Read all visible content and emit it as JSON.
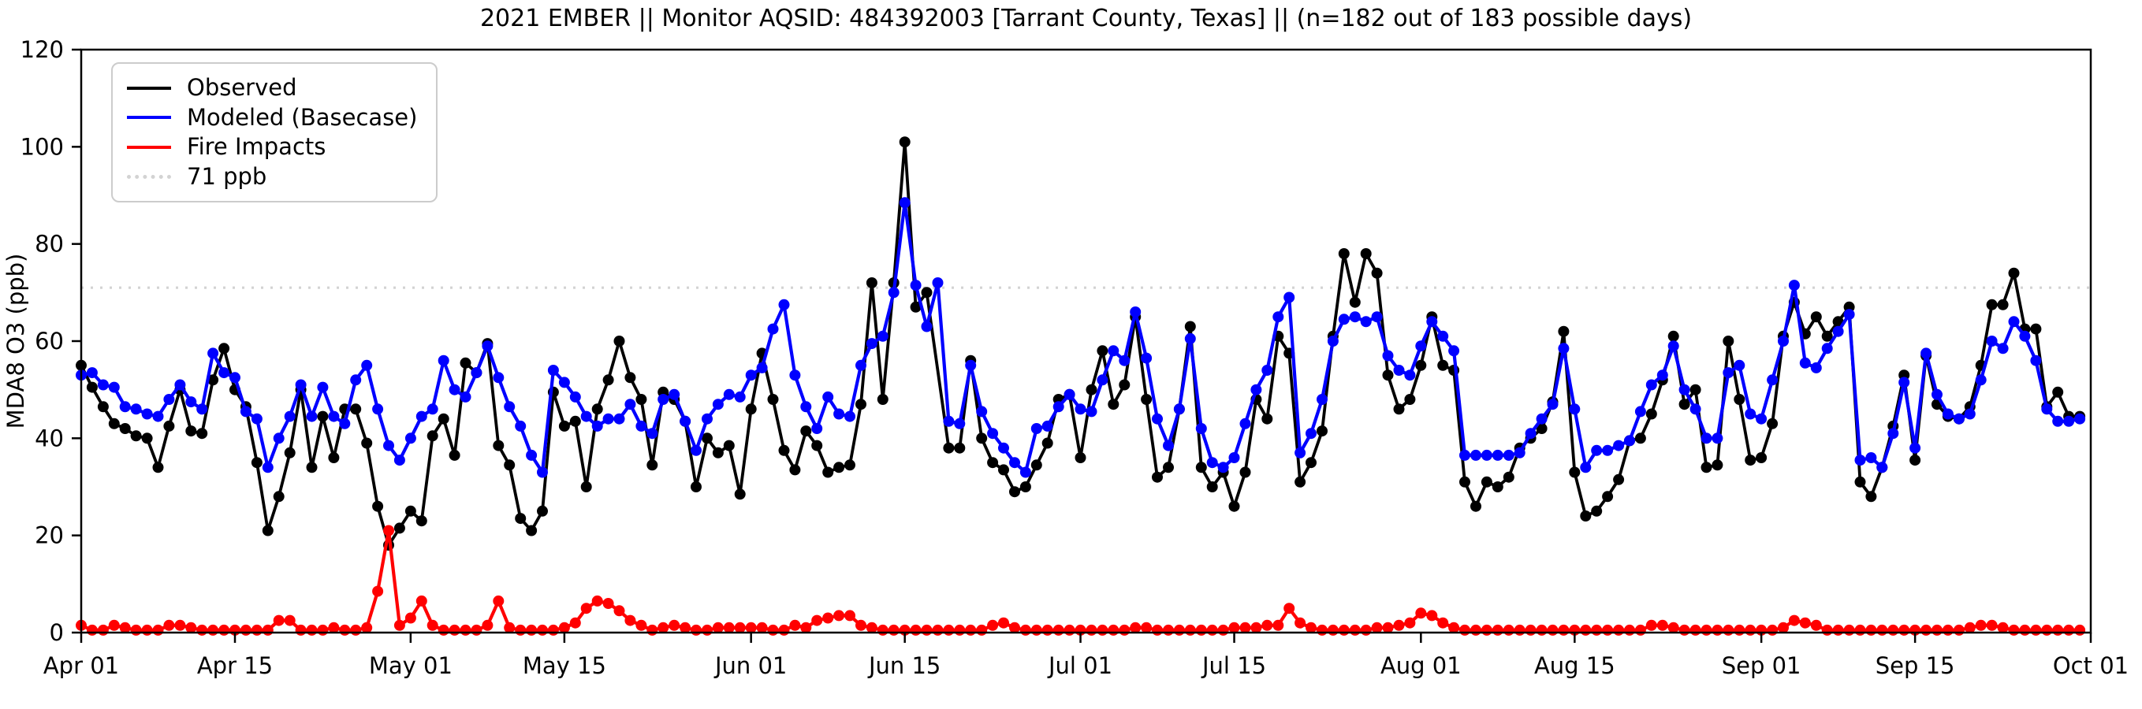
{
  "figure": {
    "title": "2021 EMBER || Monitor AQSID: 484392003 [Tarrant County, Texas] || (n=182 out of 183 possible days)",
    "background_color": "#ffffff"
  },
  "axes": {
    "ylabel": "MDA8 O3 (ppb)",
    "ylim": [
      0,
      120
    ],
    "y_ticks": [
      0,
      20,
      40,
      60,
      80,
      100,
      120
    ],
    "x_tick_labels": [
      "Apr 01",
      "Apr 15",
      "May 01",
      "May 15",
      "Jun 01",
      "Jun 15",
      "Jul 01",
      "Jul 15",
      "Aug 01",
      "Aug 15",
      "Sep 01",
      "Sep 15",
      "Oct 01"
    ],
    "x_tick_days": [
      0,
      14,
      30,
      44,
      61,
      75,
      91,
      105,
      122,
      136,
      153,
      167,
      183
    ],
    "grid": "off",
    "spine_color": "#000000"
  },
  "legend": {
    "position": "upper-left",
    "items": [
      {
        "label": "Observed",
        "color": "#000000",
        "style": "solid"
      },
      {
        "label": "Modeled (Basecase)",
        "color": "#0000ff",
        "style": "solid"
      },
      {
        "label": "Fire Impacts",
        "color": "#ff0000",
        "style": "solid"
      },
      {
        "label": "71 ppb",
        "color": "#d3d3d3",
        "style": "dotted"
      }
    ]
  },
  "chart_data": {
    "type": "line",
    "title": "2021 EMBER || Monitor AQSID: 484392003 [Tarrant County, Texas] || (n=182 out of 183 possible days)",
    "xlabel": "",
    "ylabel": "MDA8 O3 (ppb)",
    "ylim": [
      0,
      120
    ],
    "legend_position": "upper-left",
    "start_date": "2021-04-01",
    "end_date": "2021-09-30",
    "n_days": 183,
    "observed_count": 182,
    "possible_days": 183,
    "threshold_ppb": 71,
    "marker": "circle",
    "series": [
      {
        "name": "Observed",
        "color": "#000000",
        "values": [
          55,
          50.5,
          46.5,
          43,
          42,
          40.5,
          40,
          34,
          42.5,
          50,
          41.5,
          41,
          52,
          58.5,
          50,
          46.5,
          35,
          21,
          28,
          37,
          50,
          34,
          44.5,
          36,
          46,
          46,
          39,
          26,
          18,
          21.5,
          25,
          23,
          40.5,
          44,
          36.5,
          55.5,
          53.5,
          59.5,
          38.5,
          34.5,
          23.5,
          21,
          25,
          49.5,
          42.5,
          43.5,
          30,
          46,
          52,
          60,
          52.5,
          48,
          34.5,
          49.5,
          48,
          43.5,
          30,
          40,
          37,
          38.5,
          28.5,
          46,
          57.5,
          48,
          37.5,
          33.5,
          41.5,
          38.5,
          33,
          34,
          34.5,
          47,
          72,
          48,
          72,
          101,
          67,
          70,
          null,
          38,
          38,
          56,
          40,
          35,
          33.5,
          29,
          30,
          34.5,
          39,
          48,
          49,
          36,
          50,
          58,
          47,
          51,
          65,
          48,
          32,
          34,
          46,
          63,
          34,
          30,
          33,
          26,
          33,
          48,
          44,
          61,
          57.5,
          31,
          35,
          41.5,
          61,
          78,
          68,
          78,
          74,
          53,
          46,
          48,
          55,
          65,
          55,
          54,
          31,
          26,
          31,
          30,
          32,
          38,
          40,
          42,
          47.5,
          62,
          33,
          24,
          25,
          28,
          31.5,
          39.5,
          40,
          45,
          52,
          61,
          47,
          50,
          34,
          34.5,
          60,
          48,
          35.5,
          36,
          43,
          61,
          68,
          61.5,
          65,
          61,
          64,
          67,
          31,
          28,
          34,
          42.5,
          53,
          35.5,
          57,
          47,
          44.5,
          44,
          46.5,
          55,
          67.5,
          67.5,
          74,
          62.5,
          62.5,
          46.5,
          49.5,
          44.5,
          44.5
        ]
      },
      {
        "name": "Modeled (Basecase)",
        "color": "#0000ff",
        "values": [
          53,
          53.5,
          51,
          50.5,
          46.5,
          46,
          45,
          44.5,
          48,
          51,
          47.5,
          46,
          57.5,
          53.5,
          52.5,
          45.5,
          44,
          34,
          40,
          44.5,
          51,
          44.5,
          50.5,
          44.5,
          43,
          52,
          55,
          46,
          38.5,
          35.5,
          40,
          44.5,
          46,
          56,
          50,
          48.5,
          53.5,
          59,
          52.5,
          46.5,
          42.5,
          36.5,
          33,
          54,
          51.5,
          48.5,
          44.5,
          42.5,
          44,
          44,
          47,
          42.5,
          41,
          48,
          49,
          43.5,
          37.5,
          44,
          47,
          49,
          48.5,
          53,
          54.5,
          62.5,
          67.5,
          53,
          46.5,
          42,
          48.5,
          45,
          44.5,
          55,
          59.5,
          61,
          70,
          88.5,
          71.5,
          63,
          72,
          43.5,
          43,
          55,
          45.5,
          41,
          38,
          35,
          33,
          42,
          42.5,
          46.5,
          49,
          46,
          45.5,
          52,
          58,
          56,
          66,
          56.5,
          44,
          38.5,
          46,
          60.5,
          42,
          35,
          34,
          36,
          43,
          50,
          54,
          65,
          69,
          37,
          41,
          48,
          60,
          64.5,
          65,
          64,
          65,
          57,
          54,
          53,
          59,
          64,
          61,
          58,
          36.5,
          36.5,
          36.5,
          36.5,
          36.5,
          37,
          41,
          44,
          47,
          58.5,
          46,
          34,
          37.5,
          37.5,
          38.5,
          39.5,
          45.5,
          51,
          53,
          59,
          50,
          46,
          40,
          40,
          53.5,
          55,
          45,
          44,
          52,
          60,
          71.5,
          55.5,
          54.5,
          58.5,
          62,
          65.5,
          35.5,
          36,
          34,
          41,
          51.5,
          38,
          57.5,
          49,
          45,
          44,
          45,
          52,
          60,
          58.5,
          64,
          61,
          56,
          46,
          43.5,
          43.5,
          44
        ]
      },
      {
        "name": "Fire Impacts",
        "color": "#ff0000",
        "values": [
          1.5,
          0.5,
          0.5,
          1.5,
          1,
          0.5,
          0.5,
          0.5,
          1.5,
          1.5,
          1,
          0.5,
          0.5,
          0.5,
          0.5,
          0.5,
          0.5,
          0.5,
          2.5,
          2.5,
          0.5,
          0.5,
          0.5,
          1,
          0.5,
          0.5,
          1,
          8.5,
          21,
          1.5,
          3,
          6.5,
          1.5,
          0.5,
          0.5,
          0.5,
          0.5,
          1.5,
          6.5,
          1,
          0.5,
          0.5,
          0.5,
          0.5,
          1,
          2,
          5,
          6.5,
          6,
          4.5,
          2.5,
          1.5,
          0.5,
          1,
          1.5,
          1,
          0.5,
          0.5,
          1,
          1,
          1,
          1,
          1,
          0.5,
          0.5,
          1.5,
          1,
          2.5,
          3,
          3.5,
          3.5,
          1.5,
          1,
          0.5,
          0.5,
          0.5,
          0.5,
          0.5,
          0.5,
          0.5,
          0.5,
          0.5,
          0.5,
          1.5,
          2,
          1,
          0.5,
          0.5,
          0.5,
          0.5,
          0.5,
          0.5,
          0.5,
          0.5,
          0.5,
          0.5,
          1,
          1,
          0.5,
          0.5,
          0.5,
          0.5,
          0.5,
          0.5,
          0.5,
          1,
          1,
          1,
          1.5,
          1.5,
          5,
          2,
          1,
          0.5,
          0.5,
          0.5,
          0.5,
          0.5,
          1,
          1,
          1.5,
          2,
          4,
          3.5,
          2,
          1,
          0.5,
          0.5,
          0.5,
          0.5,
          0.5,
          0.5,
          0.5,
          0.5,
          0.5,
          0.5,
          0.5,
          0.5,
          0.5,
          0.5,
          0.5,
          0.5,
          0.5,
          1.5,
          1.5,
          1,
          0.5,
          0.5,
          0.5,
          0.5,
          0.5,
          0.5,
          0.5,
          0.5,
          0.5,
          1,
          2.5,
          2,
          1.5,
          0.5,
          0.5,
          0.5,
          0.5,
          0.5,
          0.5,
          0.5,
          0.5,
          0.5,
          0.5,
          0.5,
          0.5,
          0.5,
          1,
          1.5,
          1.5,
          1,
          0.5,
          0.5,
          0.5,
          0.5,
          0.5,
          0.5,
          0.5
        ]
      }
    ]
  }
}
